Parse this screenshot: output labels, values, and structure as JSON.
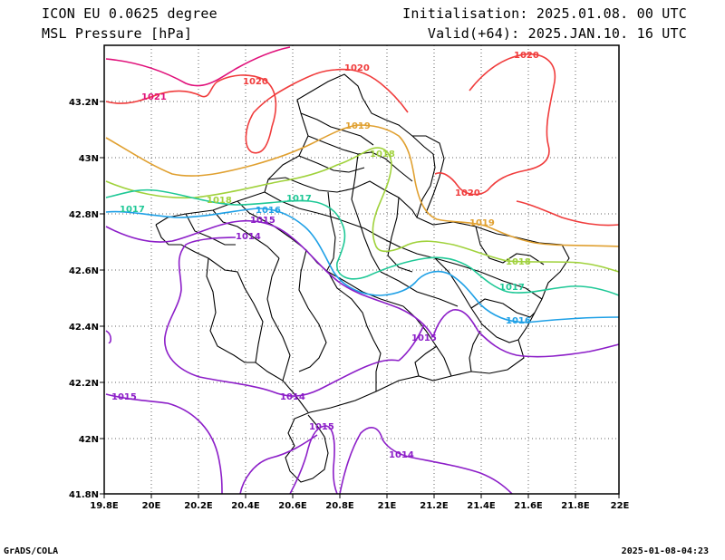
{
  "header": {
    "model": "ICON EU 0.0625 degree",
    "field": "MSL Pressure [hPa]",
    "init": "Initialisation: 2025.01.08. 00 UTC",
    "valid": "Valid(+64): 2025.JAN.10. 16 UTC"
  },
  "footer": {
    "credit": "GrADS/COLA",
    "timestamp": "2025-01-08-04:23"
  },
  "map": {
    "lon_ticks": [
      "19.8E",
      "20E",
      "20.2E",
      "20.4E",
      "20.6E",
      "20.8E",
      "21E",
      "21.2E",
      "21.4E",
      "21.6E",
      "21.8E",
      "22E"
    ],
    "lat_ticks": [
      "43.2N",
      "43N",
      "42.8N",
      "42.6N",
      "42.4N",
      "42.2N",
      "42N",
      "41.8N"
    ],
    "contour_labels": [
      {
        "text": "1021",
        "color": "#e0107a"
      },
      {
        "text": "1020",
        "color": "#f03c3c"
      },
      {
        "text": "1020",
        "color": "#f03c3c"
      },
      {
        "text": "1020",
        "color": "#f03c3c"
      },
      {
        "text": "1020",
        "color": "#f03c3c"
      },
      {
        "text": "1019",
        "color": "#e0a030"
      },
      {
        "text": "1019",
        "color": "#e0a030"
      },
      {
        "text": "1018",
        "color": "#a0d23c"
      },
      {
        "text": "1018",
        "color": "#a0d23c"
      },
      {
        "text": "1018",
        "color": "#a0d23c"
      },
      {
        "text": "1017",
        "color": "#1ec896"
      },
      {
        "text": "1017",
        "color": "#1ec896"
      },
      {
        "text": "1017",
        "color": "#1ec896"
      },
      {
        "text": "1016",
        "color": "#1ea0e6"
      },
      {
        "text": "1016",
        "color": "#1ea0e6"
      },
      {
        "text": "1015",
        "color": "#8c1ec8"
      },
      {
        "text": "1015",
        "color": "#8c1ec8"
      },
      {
        "text": "1015",
        "color": "#8c1ec8"
      },
      {
        "text": "1015",
        "color": "#8c1ec8"
      },
      {
        "text": "1014",
        "color": "#8c1ec8"
      },
      {
        "text": "1014",
        "color": "#8c1ec8"
      },
      {
        "text": "1014",
        "color": "#8c1ec8"
      }
    ]
  }
}
